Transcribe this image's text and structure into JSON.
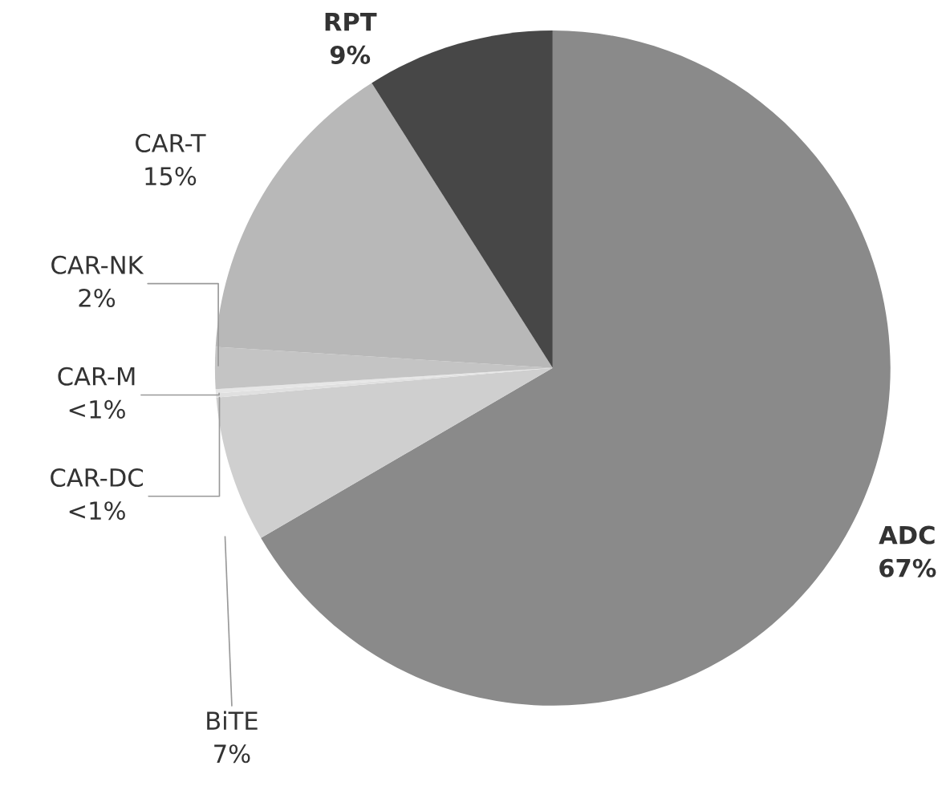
{
  "chart_data": {
    "type": "pie",
    "categories": [
      "ADC",
      "BiTE",
      "CAR-DC",
      "CAR-M",
      "CAR-NK",
      "CAR-T",
      "RPT"
    ],
    "values": [
      66.6,
      7,
      0.2,
      0.2,
      2,
      15,
      9
    ],
    "value_labels": [
      "67%",
      "7%",
      "<1%",
      "<1%",
      "2%",
      "15%",
      "9%"
    ],
    "colors": [
      "#8a8a8a",
      "#cfcfcf",
      "#e0e0e0",
      "#e6e6e6",
      "#c4c4c4",
      "#b8b8b8",
      "#474747"
    ],
    "legend": false
  }
}
